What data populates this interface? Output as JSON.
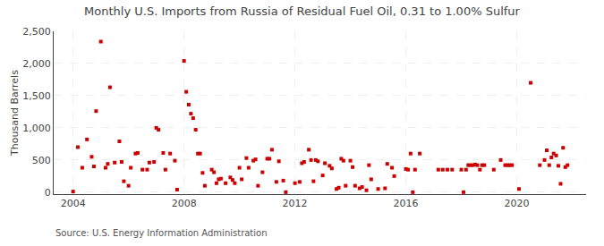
{
  "chart_data": {
    "type": "scatter",
    "title": "Monthly U.S. Imports from Russia of Residual Fuel Oil, 0.31 to 1.00% Sulfur",
    "ylabel": "Thousand Barrels",
    "annotations": [
      "Source: U.S. Energy Information Administration"
    ],
    "color": "#CC0000",
    "marker": "square",
    "grid": true,
    "xlim": [
      2003.3,
      2022.5
    ],
    "xticks": [
      2004,
      2008,
      2012,
      2016,
      2020
    ],
    "ylim": [
      -30,
      2500
    ],
    "yticks": [
      0,
      500,
      {
        "value": 1000,
        "label": "1,000"
      },
      {
        "value": 1500,
        "label": "1,500"
      },
      {
        "value": 2000,
        "label": "2,000"
      },
      {
        "value": 2500,
        "label": "2,500"
      }
    ],
    "x": [
      2004.0,
      2004.17,
      2004.33,
      2004.5,
      2004.67,
      2004.75,
      2004.83,
      2005.0,
      2005.17,
      2005.25,
      2005.33,
      2005.5,
      2005.67,
      2005.75,
      2005.83,
      2006.0,
      2006.08,
      2006.25,
      2006.33,
      2006.5,
      2006.67,
      2006.75,
      2006.92,
      2007.0,
      2007.08,
      2007.25,
      2007.33,
      2007.5,
      2007.67,
      2007.75,
      2008.0,
      2008.08,
      2008.17,
      2008.25,
      2008.33,
      2008.42,
      2008.5,
      2008.58,
      2008.67,
      2008.75,
      2009.0,
      2009.08,
      2009.17,
      2009.25,
      2009.33,
      2009.5,
      2009.67,
      2009.75,
      2009.83,
      2010.0,
      2010.08,
      2010.25,
      2010.33,
      2010.5,
      2010.58,
      2010.67,
      2010.83,
      2011.0,
      2011.08,
      2011.17,
      2011.33,
      2011.42,
      2011.58,
      2011.67,
      2012.0,
      2012.17,
      2012.25,
      2012.33,
      2012.5,
      2012.58,
      2012.67,
      2012.75,
      2012.83,
      2013.0,
      2013.08,
      2013.25,
      2013.33,
      2013.5,
      2013.58,
      2013.67,
      2013.75,
      2013.83,
      2014.0,
      2014.08,
      2014.17,
      2014.33,
      2014.42,
      2014.58,
      2014.67,
      2014.75,
      2015.0,
      2015.25,
      2015.33,
      2015.5,
      2015.58,
      2016.0,
      2016.08,
      2016.17,
      2016.25,
      2016.33,
      2016.5,
      2017.17,
      2017.33,
      2017.5,
      2017.67,
      2018.0,
      2018.08,
      2018.17,
      2018.25,
      2018.33,
      2018.42,
      2018.5,
      2018.58,
      2018.67,
      2018.75,
      2018.83,
      2019.17,
      2019.42,
      2019.58,
      2019.67,
      2019.75,
      2019.83,
      2020.08,
      2020.5,
      2020.83,
      2021.0,
      2021.08,
      2021.17,
      2021.25,
      2021.33,
      2021.42,
      2021.5,
      2021.58,
      2021.67,
      2021.75,
      2021.83
    ],
    "values": [
      10,
      700,
      380,
      820,
      550,
      400,
      1260,
      2340,
      380,
      440,
      1630,
      460,
      790,
      470,
      170,
      100,
      380,
      600,
      610,
      350,
      350,
      460,
      470,
      1000,
      970,
      610,
      350,
      600,
      490,
      40,
      2040,
      1560,
      1360,
      1220,
      1150,
      970,
      600,
      600,
      300,
      100,
      350,
      310,
      140,
      200,
      210,
      140,
      230,
      190,
      140,
      380,
      200,
      530,
      380,
      490,
      510,
      100,
      310,
      520,
      520,
      660,
      160,
      480,
      180,
      0,
      140,
      160,
      450,
      470,
      660,
      500,
      170,
      500,
      480,
      260,
      450,
      410,
      370,
      50,
      70,
      520,
      490,
      100,
      490,
      390,
      100,
      60,
      80,
      30,
      420,
      200,
      50,
      60,
      440,
      380,
      250,
      360,
      350,
      600,
      0,
      350,
      600,
      350,
      350,
      350,
      350,
      350,
      0,
      350,
      420,
      420,
      420,
      430,
      420,
      350,
      420,
      420,
      350,
      500,
      420,
      420,
      420,
      420,
      50,
      1700,
      420,
      500,
      650,
      420,
      540,
      600,
      570,
      410,
      130,
      690,
      390,
      420
    ]
  }
}
